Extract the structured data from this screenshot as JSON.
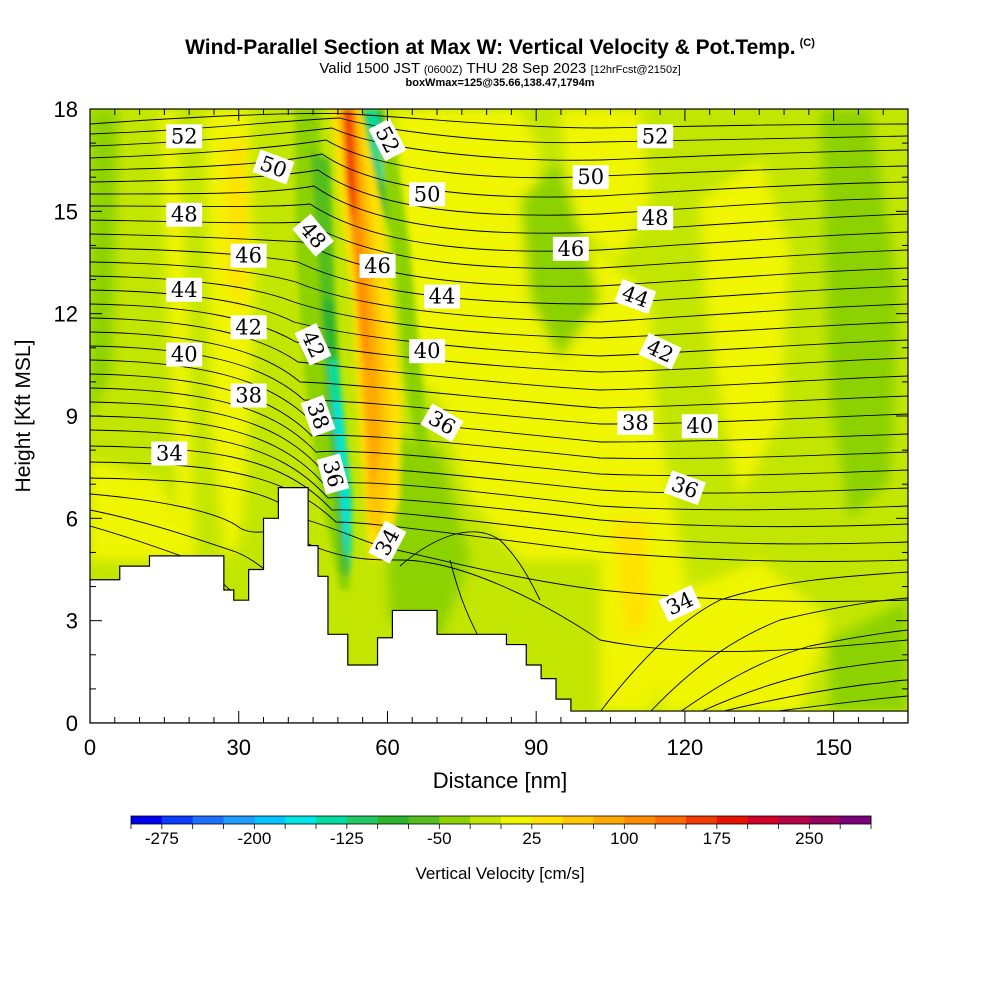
{
  "header": {
    "title": "Wind-Parallel Section at Max W: Vertical Velocity & Pot.Temp.",
    "copyright": "(C)",
    "valid_prefix": "Valid 1500 JST",
    "valid_utc": "(0600Z)",
    "valid_date": "THU 28 Sep 2023",
    "forecast_info": "[12hrFcst@2150z]",
    "box_info": "boxWmax=125@35.66,138.47,1794m"
  },
  "chart_data": {
    "type": "heatmap",
    "title": "Wind-Parallel Section at Max W: Vertical Velocity & Pot.Temp.",
    "xlabel": "Distance [nm]",
    "ylabel": "Height [Kft MSL]",
    "xlim": [
      0,
      165
    ],
    "ylim": [
      0,
      18
    ],
    "xticks": [
      0,
      30,
      60,
      90,
      120,
      150
    ],
    "yticks": [
      0,
      3,
      6,
      9,
      12,
      15,
      18
    ],
    "grid": false,
    "colorbar": {
      "label": "Vertical Velocity [cm/s]",
      "min": -300,
      "max": 300,
      "step": 25,
      "tick_labels": [
        "-275",
        "-200",
        "-125",
        "-50",
        "25",
        "100",
        "175",
        "250"
      ],
      "tick_values": [
        -275,
        -200,
        -125,
        -50,
        25,
        100,
        175,
        250
      ],
      "colors": [
        "#0000f0",
        "#0a3cff",
        "#1e6eff",
        "#1e9bff",
        "#00c3ff",
        "#00e6e6",
        "#00dca0",
        "#22c864",
        "#2db42d",
        "#55be1e",
        "#8cd200",
        "#c3e600",
        "#f0f500",
        "#ffe100",
        "#ffc800",
        "#ffaa00",
        "#ff8c00",
        "#ff6a00",
        "#f03c00",
        "#e61400",
        "#d20028",
        "#b40046",
        "#96005f",
        "#780078"
      ]
    },
    "terrain": {
      "description": "white terrain profile",
      "profile": [
        [
          0,
          4.2
        ],
        [
          6,
          4.2
        ],
        [
          6,
          4.6
        ],
        [
          12,
          4.6
        ],
        [
          12,
          4.9
        ],
        [
          27,
          4.9
        ],
        [
          27,
          3.9
        ],
        [
          29,
          3.9
        ],
        [
          29,
          3.6
        ],
        [
          32,
          3.6
        ],
        [
          32,
          4.5
        ],
        [
          35,
          4.5
        ],
        [
          35,
          6.0
        ],
        [
          38,
          6.0
        ],
        [
          38,
          6.9
        ],
        [
          44,
          6.9
        ],
        [
          44,
          5.2
        ],
        [
          46,
          5.2
        ],
        [
          46,
          4.3
        ],
        [
          48,
          4.3
        ],
        [
          48,
          2.6
        ],
        [
          52,
          2.6
        ],
        [
          52,
          1.7
        ],
        [
          58,
          1.7
        ],
        [
          58,
          2.5
        ],
        [
          61,
          2.5
        ],
        [
          61,
          3.3
        ],
        [
          70,
          3.3
        ],
        [
          70,
          2.6
        ],
        [
          84,
          2.6
        ],
        [
          84,
          2.3
        ],
        [
          88,
          2.3
        ],
        [
          88,
          1.7
        ],
        [
          91,
          1.7
        ],
        [
          91,
          1.3
        ],
        [
          94,
          1.3
        ],
        [
          94,
          0.7
        ],
        [
          97,
          0.7
        ],
        [
          97,
          0.35
        ],
        [
          165,
          0.35
        ],
        [
          165,
          0
        ]
      ]
    },
    "isentrope_labels": [
      {
        "text": "52",
        "x": 19,
        "y": 17.2,
        "rotate": 0
      },
      {
        "text": "52",
        "x": 60,
        "y": 17.1,
        "rotate": 62
      },
      {
        "text": "52",
        "x": 114,
        "y": 17.2,
        "rotate": 0
      },
      {
        "text": "50",
        "x": 37,
        "y": 16.3,
        "rotate": 20
      },
      {
        "text": "50",
        "x": 68,
        "y": 15.5,
        "rotate": 0
      },
      {
        "text": "50",
        "x": 101,
        "y": 16.0,
        "rotate": 0
      },
      {
        "text": "48",
        "x": 19,
        "y": 14.9,
        "rotate": 0
      },
      {
        "text": "48",
        "x": 45,
        "y": 14.3,
        "rotate": 50
      },
      {
        "text": "48",
        "x": 114,
        "y": 14.8,
        "rotate": 0
      },
      {
        "text": "46",
        "x": 32,
        "y": 13.7,
        "rotate": 0
      },
      {
        "text": "46",
        "x": 58,
        "y": 13.4,
        "rotate": 0
      },
      {
        "text": "46",
        "x": 97,
        "y": 13.9,
        "rotate": 0
      },
      {
        "text": "44",
        "x": 19,
        "y": 12.7,
        "rotate": 0
      },
      {
        "text": "44",
        "x": 71,
        "y": 12.5,
        "rotate": 0
      },
      {
        "text": "44",
        "x": 110,
        "y": 12.5,
        "rotate": 20
      },
      {
        "text": "42",
        "x": 32,
        "y": 11.6,
        "rotate": 0
      },
      {
        "text": "42",
        "x": 45,
        "y": 11.1,
        "rotate": 65
      },
      {
        "text": "42",
        "x": 115,
        "y": 10.9,
        "rotate": 25
      },
      {
        "text": "40",
        "x": 19,
        "y": 10.8,
        "rotate": 0
      },
      {
        "text": "40",
        "x": 68,
        "y": 10.9,
        "rotate": 0
      },
      {
        "text": "40",
        "x": 123,
        "y": 8.7,
        "rotate": 0
      },
      {
        "text": "38",
        "x": 32,
        "y": 9.6,
        "rotate": 0
      },
      {
        "text": "38",
        "x": 46,
        "y": 9.0,
        "rotate": 70
      },
      {
        "text": "38",
        "x": 110,
        "y": 8.8,
        "rotate": 0
      },
      {
        "text": "36",
        "x": 49,
        "y": 7.3,
        "rotate": 75
      },
      {
        "text": "36",
        "x": 71,
        "y": 8.8,
        "rotate": 30
      },
      {
        "text": "36",
        "x": 120,
        "y": 6.9,
        "rotate": 20
      },
      {
        "text": "34",
        "x": 16,
        "y": 7.9,
        "rotate": 0
      },
      {
        "text": "34",
        "x": 60,
        "y": 5.3,
        "rotate": -62
      },
      {
        "text": "34",
        "x": 119,
        "y": 3.5,
        "rotate": -25
      }
    ]
  }
}
